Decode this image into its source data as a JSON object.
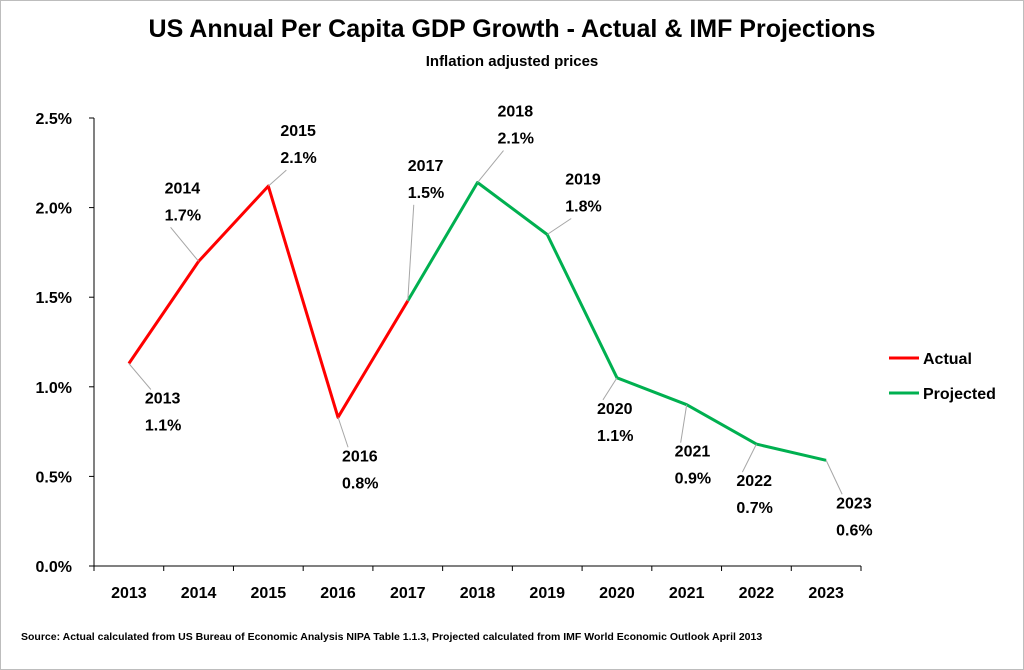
{
  "title": "US Annual Per Capita GDP Growth - Actual & IMF Projections",
  "subtitle": "Inflation adjusted prices",
  "source": "Source: Actual calculated from US Bureau of Economic Analysis NIPA Table 1.1.3, Projected calculated from IMF World Economic Outlook April 2013",
  "chart_data": {
    "type": "line",
    "x": [
      "2013",
      "2014",
      "2015",
      "2016",
      "2017",
      "2018",
      "2019",
      "2020",
      "2021",
      "2022",
      "2023"
    ],
    "y": [
      1.13,
      1.7,
      2.12,
      0.83,
      1.48,
      2.14,
      1.85,
      1.05,
      0.9,
      0.68,
      0.59
    ],
    "data_labels": [
      "2013\n1.1%",
      "2014\n1.7%",
      "2015\n2.1%",
      "2016\n0.8%",
      "2017\n1.5%",
      "2018\n2.1%",
      "2019\n1.8%",
      "2020\n1.1%",
      "2021\n0.9%",
      "2022\n0.7%",
      "2023\n0.6%"
    ],
    "series": [
      {
        "name": "Actual",
        "color": "#ff0000",
        "x": [
          "2013",
          "2014",
          "2015",
          "2016",
          "2017"
        ],
        "values": [
          1.13,
          1.7,
          2.12,
          0.83,
          1.48
        ]
      },
      {
        "name": "Projected",
        "color": "#00b050",
        "x": [
          "2017",
          "2018",
          "2019",
          "2020",
          "2021",
          "2022",
          "2023"
        ],
        "values": [
          1.48,
          2.14,
          1.85,
          1.05,
          0.9,
          0.68,
          0.59
        ]
      }
    ],
    "ylim": [
      0,
      2.5
    ],
    "yticks": [
      "0.0%",
      "0.5%",
      "1.0%",
      "1.5%",
      "2.0%",
      "2.5%"
    ],
    "legend": "right",
    "grid": false
  }
}
